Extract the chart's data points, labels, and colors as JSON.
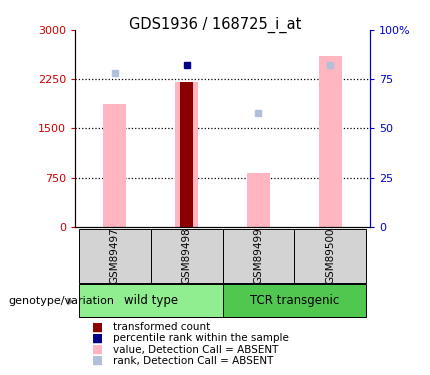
{
  "title": "GDS1936 / 168725_i_at",
  "samples": [
    "GSM89497",
    "GSM89498",
    "GSM89499",
    "GSM89500"
  ],
  "ylim_left": [
    0,
    3000
  ],
  "ylim_right": [
    0,
    100
  ],
  "yticks_left": [
    0,
    750,
    1500,
    2250,
    3000
  ],
  "yticks_right": [
    0,
    25,
    50,
    75,
    100
  ],
  "ytick_labels_left": [
    "0",
    "750",
    "1500",
    "2250",
    "3000"
  ],
  "ytick_labels_right": [
    "0",
    "25",
    "50",
    "75",
    "100%"
  ],
  "bar_values": [
    1880,
    2210,
    820,
    2600
  ],
  "bar_color_absent": "#ffb6c1",
  "bar_color_present": "#8b0000",
  "rank_vals_pct": [
    78,
    82,
    58,
    82
  ],
  "rank_dot_color_absent": "#b0c0d8",
  "rank_dot_color_present": "#00008b",
  "transformed_count_idx": 1,
  "percentile_rank_idx": 1,
  "legend_items": [
    {
      "label": "transformed count",
      "color": "#8b0000"
    },
    {
      "label": "percentile rank within the sample",
      "color": "#00008b"
    },
    {
      "label": "value, Detection Call = ABSENT",
      "color": "#ffb6c1"
    },
    {
      "label": "rank, Detection Call = ABSENT",
      "color": "#b0c0d8"
    }
  ],
  "group_label_text": "genotype/variation",
  "left_axis_color": "#cc0000",
  "right_axis_color": "#0000cc",
  "group_spans": [
    {
      "label": "wild type",
      "start": 0,
      "end": 1,
      "color": "#90ee90"
    },
    {
      "label": "TCR transgenic",
      "start": 2,
      "end": 3,
      "color": "#50c850"
    }
  ],
  "bar_width": 0.32
}
